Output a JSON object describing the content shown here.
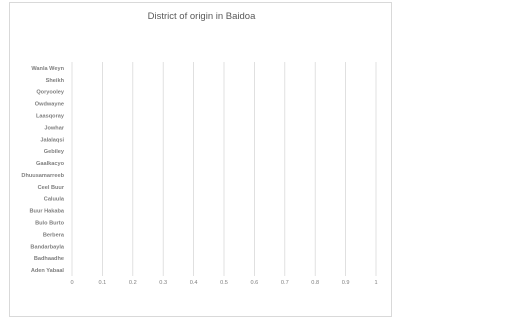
{
  "chart_data": {
    "type": "bar",
    "orientation": "horizontal",
    "title": "District of origin in Baidoa",
    "categories": [
      "Wanla Weyn",
      "Sheikh",
      "Qoryooley",
      "Owdwayne",
      "Laasqoray",
      "Jowhar",
      "Jalalaqsi",
      "Gebiley",
      "Gaalkacyo",
      "Dhuusamarreeb",
      "Ceel Buur",
      "Caluula",
      "Buur Hakaba",
      "Bulo Burto",
      "Berbera",
      "Bandarbayla",
      "Badhaadhe",
      "Aden Yabaal"
    ],
    "values": [
      0,
      0,
      0,
      0,
      0,
      0,
      0,
      0,
      0,
      0,
      0,
      0,
      0,
      0,
      0,
      0,
      0,
      0
    ],
    "xlim": [
      0,
      1
    ],
    "xticks": [
      "0",
      "0.1",
      "0.2",
      "0.3",
      "0.4",
      "0.5",
      "0.6",
      "0.7",
      "0.8",
      "0.9",
      "1"
    ],
    "xlabel": "",
    "ylabel": "",
    "grid": "vertical",
    "legend": "none",
    "colors": {
      "gridline": "#d9d9d9",
      "label": "#7f7f7f",
      "title": "#595959",
      "bar": "#4472c4"
    }
  }
}
